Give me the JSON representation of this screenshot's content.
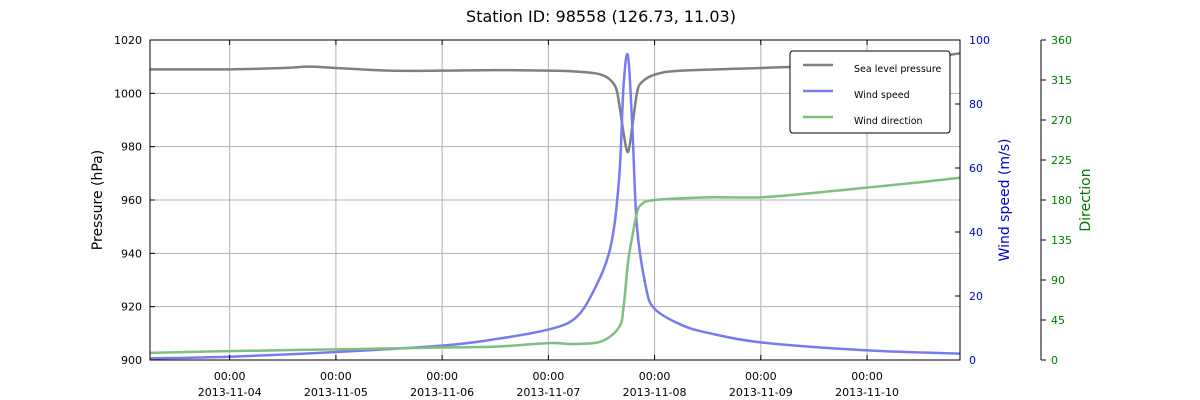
{
  "chart_data": {
    "type": "line",
    "title": "Station ID: 98558 (126.73,  11.03)",
    "x_axis": {
      "range": [
        "2013-11-03 06:00",
        "2013-11-10 21:00"
      ],
      "ticks": [
        {
          "time": "00:00",
          "date": "2013-11-04"
        },
        {
          "time": "00:00",
          "date": "2013-11-05"
        },
        {
          "time": "00:00",
          "date": "2013-11-06"
        },
        {
          "time": "00:00",
          "date": "2013-11-07"
        },
        {
          "time": "00:00",
          "date": "2013-11-08"
        },
        {
          "time": "00:00",
          "date": "2013-11-09"
        },
        {
          "time": "00:00",
          "date": "2013-11-10"
        }
      ],
      "grid": true
    },
    "y_axes": [
      {
        "id": "pressure",
        "label": "Pressure (hPa)",
        "range": [
          900,
          1020
        ],
        "ticks": [
          "900",
          "920",
          "940",
          "960",
          "980",
          "1000",
          "1020"
        ],
        "color": "#000000",
        "position": "left",
        "grid": true
      },
      {
        "id": "wind",
        "label": "Wind speed (m/s)",
        "range": [
          0,
          100
        ],
        "ticks": [
          "0",
          "20",
          "40",
          "60",
          "80",
          "100"
        ],
        "color": "#0000cc",
        "position": "right"
      },
      {
        "id": "direction",
        "label": "Direction",
        "range": [
          0,
          360
        ],
        "ticks": [
          "0",
          "45",
          "90",
          "135",
          "180",
          "225",
          "270",
          "315",
          "360"
        ],
        "color": "#007700",
        "position": "right-outer"
      }
    ],
    "legend": {
      "placement": "top-right",
      "entries": [
        "Sea level pressure",
        "Wind speed",
        "Wind direction"
      ]
    },
    "series": [
      {
        "name": "Sea level pressure",
        "axis": "pressure",
        "color": "#808080",
        "x": [
          "2013-11-03 06:00",
          "2013-11-04 00:00",
          "2013-11-04 12:00",
          "2013-11-04 18:00",
          "2013-11-05 00:00",
          "2013-11-05 12:00",
          "2013-11-06 00:00",
          "2013-11-06 12:00",
          "2013-11-07 00:00",
          "2013-11-07 06:00",
          "2013-11-07 12:00",
          "2013-11-07 15:00",
          "2013-11-07 16:00",
          "2013-11-07 17:00",
          "2013-11-07 18:00",
          "2013-11-07 19:00",
          "2013-11-07 20:00",
          "2013-11-07 21:00",
          "2013-11-08 00:00",
          "2013-11-08 06:00",
          "2013-11-09 00:00",
          "2013-11-10 00:00",
          "2013-11-10 12:00",
          "2013-11-10 21:00"
        ],
        "y": [
          1009,
          1009,
          1009.5,
          1010,
          1009.5,
          1008.5,
          1008.5,
          1008.7,
          1008.5,
          1008.2,
          1007,
          1003,
          996,
          985,
          978,
          988,
          1000,
          1004,
          1007,
          1008.5,
          1009.5,
          1011,
          1013,
          1015
        ]
      },
      {
        "name": "Wind speed",
        "axis": "wind",
        "color": "#7a7af0",
        "x": [
          "2013-11-03 06:00",
          "2013-11-04 00:00",
          "2013-11-05 00:00",
          "2013-11-06 00:00",
          "2013-11-06 12:00",
          "2013-11-07 00:00",
          "2013-11-07 06:00",
          "2013-11-07 10:00",
          "2013-11-07 14:00",
          "2013-11-07 16:00",
          "2013-11-07 17:00",
          "2013-11-07 18:00",
          "2013-11-07 19:00",
          "2013-11-07 20:00",
          "2013-11-07 22:00",
          "2013-11-08 00:00",
          "2013-11-08 06:00",
          "2013-11-08 12:00",
          "2013-11-09 00:00",
          "2013-11-10 00:00",
          "2013-11-10 21:00"
        ],
        "y": [
          0.5,
          1,
          2.5,
          4.5,
          6.5,
          9.5,
          13,
          21,
          35,
          57,
          86,
          95,
          72,
          42,
          23,
          16,
          11,
          8.5,
          5.5,
          3,
          2
        ]
      },
      {
        "name": "Wind direction",
        "axis": "direction",
        "color": "#7fbf7f",
        "x": [
          "2013-11-03 06:00",
          "2013-11-04 00:00",
          "2013-11-05 00:00",
          "2013-11-06 00:00",
          "2013-11-06 12:00",
          "2013-11-07 00:00",
          "2013-11-07 06:00",
          "2013-11-07 12:00",
          "2013-11-07 16:00",
          "2013-11-07 17:00",
          "2013-11-07 18:00",
          "2013-11-07 19:00",
          "2013-11-07 20:00",
          "2013-11-07 21:00",
          "2013-11-08 00:00",
          "2013-11-08 12:00",
          "2013-11-09 00:00",
          "2013-11-09 12:00",
          "2013-11-10 00:00",
          "2013-11-10 12:00",
          "2013-11-10 21:00"
        ],
        "y": [
          8,
          10,
          12,
          14,
          15,
          19,
          18,
          21,
          37,
          60,
          110,
          140,
          165,
          175,
          180,
          183,
          183,
          188,
          194,
          200,
          205
        ]
      }
    ]
  }
}
